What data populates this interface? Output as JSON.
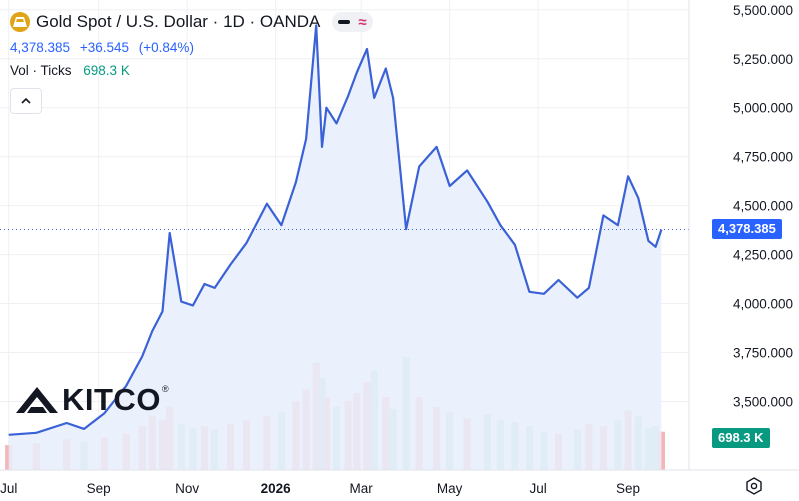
{
  "header": {
    "title": "Gold Spot / U.S. Dollar · 1D · OANDA",
    "price": "4,378.385",
    "change": "+36.545",
    "change_pct": "(+0.84%)",
    "volume_label": "Vol · Ticks",
    "volume_value": "698.3 K"
  },
  "price_tag": "4,378.385",
  "volume_tag": "698.3 K",
  "watermark": "KITCO",
  "watermark_mark": "®",
  "icons": [
    "gold-symbol-icon",
    "minus-icon",
    "wave-icon",
    "chevron-up-icon",
    "kitco-logo-icon",
    "settings-icon"
  ],
  "colors": {
    "line": "#2962ff",
    "line_stroke": "#3a62d6",
    "area_fill": "#e8eefc",
    "volume_up": "#f4b6b9",
    "volume_down": "#b3dcd3",
    "volume_tag": "#089981",
    "price_tag": "#2962ff",
    "grid": "#eef0f3"
  },
  "chart_data": {
    "type": "area",
    "title": "",
    "xlabel": "",
    "ylabel": "",
    "x_ticks": [
      "Jul",
      "Sep",
      "Nov",
      "2026",
      "Mar",
      "May",
      "Jul",
      "Sep"
    ],
    "y_ticks": [
      5500,
      5250,
      5000,
      4750,
      4500,
      4250,
      4000,
      3750,
      3500
    ],
    "y_tick_labels": [
      "5,500.000",
      "5,250.000",
      "5,000.000",
      "4,750.000",
      "4,500.000",
      "4,250.000",
      "4,000.000",
      "3,750.000",
      "3,500.000"
    ],
    "ylim": [
      3150,
      5550
    ],
    "x": [
      "2025-07-01",
      "2025-07-20",
      "2025-08-10",
      "2025-08-22",
      "2025-09-05",
      "2025-09-20",
      "2025-10-01",
      "2025-10-08",
      "2025-10-15",
      "2025-10-20",
      "2025-10-28",
      "2025-11-05",
      "2025-11-13",
      "2025-11-20",
      "2025-12-01",
      "2025-12-12",
      "2025-12-26",
      "2026-01-05",
      "2026-01-15",
      "2026-01-22",
      "2026-01-29",
      "2026-02-02",
      "2026-02-05",
      "2026-02-12",
      "2026-02-20",
      "2026-02-26",
      "2026-03-05",
      "2026-03-10",
      "2026-03-18",
      "2026-03-23",
      "2026-04-01",
      "2026-04-10",
      "2026-04-22",
      "2026-05-01",
      "2026-05-13",
      "2026-05-27",
      "2026-06-05",
      "2026-06-15",
      "2026-06-25",
      "2026-07-05",
      "2026-07-15",
      "2026-07-28",
      "2026-08-05",
      "2026-08-15",
      "2026-08-25",
      "2026-09-01",
      "2026-09-08",
      "2026-09-15",
      "2026-09-20",
      "2026-09-24"
    ],
    "series": [
      {
        "values": [
          3330,
          3340,
          3390,
          3360,
          3440,
          3580,
          3730,
          3860,
          3960,
          4360,
          4010,
          3990,
          4100,
          4080,
          4200,
          4310,
          4510,
          4400,
          4620,
          4840,
          5420,
          4800,
          5000,
          4920,
          5060,
          5180,
          5300,
          5050,
          5200,
          5050,
          4380,
          4700,
          4800,
          4600,
          4680,
          4520,
          4400,
          4300,
          4060,
          4050,
          4120,
          4030,
          4080,
          4450,
          4400,
          4650,
          4540,
          4320,
          4290,
          4378
        ]
      },
      {
        "name": "Vol · Ticks",
        "values": [
          130,
          140,
          160,
          150,
          170,
          190,
          230,
          280,
          260,
          330,
          240,
          220,
          230,
          210,
          240,
          260,
          280,
          300,
          360,
          420,
          560,
          480,
          380,
          330,
          360,
          400,
          460,
          520,
          380,
          320,
          590,
          380,
          330,
          300,
          270,
          290,
          260,
          250,
          230,
          200,
          190,
          210,
          240,
          230,
          260,
          310,
          280,
          220,
          230,
          200
        ]
      }
    ],
    "last_price": 4378.385,
    "grid": true
  }
}
